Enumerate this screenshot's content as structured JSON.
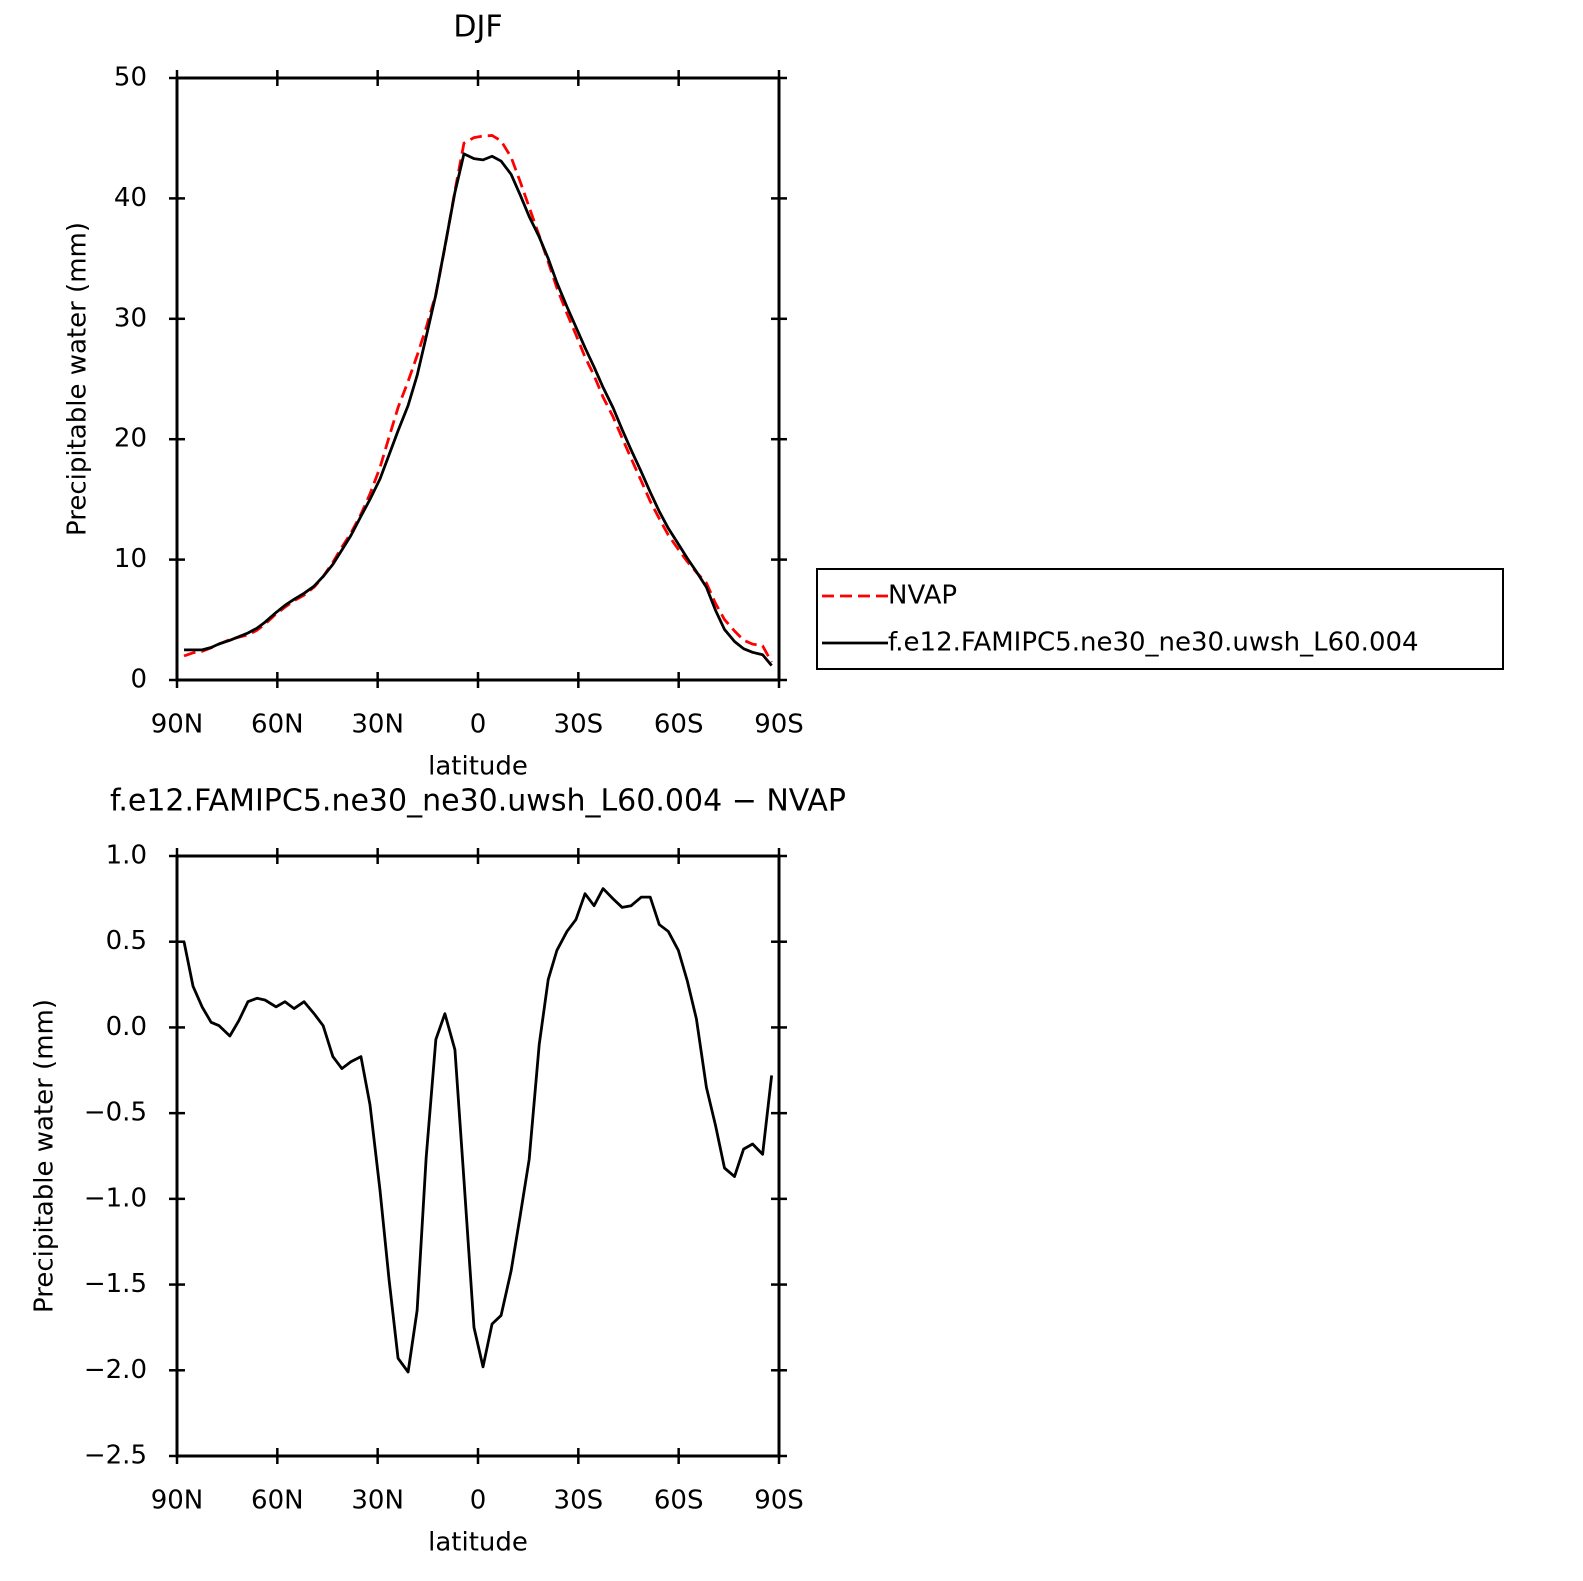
{
  "chart_data": [
    {
      "type": "line",
      "title": "DJF",
      "x_label": "latitude",
      "y_label": "Precipitable water (mm)",
      "x": [
        87.9,
        85.2,
        82.5,
        79.8,
        77.4,
        74.2,
        71.5,
        68.8,
        66.1,
        63.7,
        60.4,
        57.7,
        55.0,
        52.0,
        49.0,
        46.3,
        43.4,
        40.7,
        38.0,
        35.0,
        32.3,
        29.3,
        26.6,
        23.9,
        20.9,
        18.2,
        15.5,
        12.6,
        9.9,
        6.9,
        4.2,
        1.2,
        -1.5,
        -4.2,
        -6.9,
        -9.9,
        -12.6,
        -15.3,
        -18.3,
        -21.0,
        -23.6,
        -26.6,
        -29.3,
        -32.0,
        -34.7,
        -37.4,
        -40.4,
        -43.1,
        -45.8,
        -48.8,
        -51.5,
        -54.2,
        -56.9,
        -59.9,
        -62.6,
        -65.3,
        -68.3,
        -71.0,
        -73.7,
        -76.7,
        -79.4,
        -82.1,
        -85.1,
        -87.8
      ],
      "series": [
        {
          "name": "NVAP",
          "color": "#ff0000",
          "line_style": "dashed",
          "values": [
            2.0,
            2.26,
            2.38,
            2.67,
            2.99,
            3.35,
            3.56,
            3.75,
            4.13,
            4.64,
            5.48,
            6.05,
            6.59,
            7.05,
            7.72,
            8.59,
            9.77,
            11.04,
            12.2,
            13.77,
            15.45,
            17.65,
            20.17,
            22.63,
            24.81,
            26.95,
            29.26,
            32.07,
            35.92,
            40.63,
            44.59,
            45.05,
            45.18,
            45.23,
            44.78,
            43.42,
            41.4,
            39.27,
            36.9,
            34.72,
            32.55,
            30.44,
            28.67,
            26.82,
            25.29,
            23.49,
            21.85,
            20.1,
            18.39,
            16.54,
            14.84,
            13.4,
            12.04,
            10.85,
            9.83,
            8.95,
            8.05,
            6.37,
            5.02,
            4.07,
            3.31,
            2.98,
            2.84,
            1.48
          ]
        },
        {
          "name": "f.e12.FAMIPC5.ne30_ne30.uwsh_L60.004",
          "color": "#000000",
          "line_style": "solid",
          "values": [
            2.5,
            2.5,
            2.5,
            2.7,
            3.0,
            3.3,
            3.6,
            3.9,
            4.3,
            4.8,
            5.6,
            6.2,
            6.7,
            7.2,
            7.8,
            8.6,
            9.6,
            10.8,
            12.0,
            13.6,
            15.0,
            16.7,
            18.7,
            20.7,
            22.8,
            25.3,
            28.5,
            32.0,
            36.0,
            40.5,
            43.7,
            43.3,
            43.2,
            43.5,
            43.1,
            42.0,
            40.3,
            38.5,
            36.8,
            35.0,
            33.0,
            31.0,
            29.3,
            27.6,
            26.0,
            24.3,
            22.6,
            20.8,
            19.1,
            17.3,
            15.6,
            14.0,
            12.6,
            11.3,
            10.1,
            9.0,
            7.7,
            5.8,
            4.2,
            3.2,
            2.6,
            2.3,
            2.1,
            1.2
          ]
        }
      ],
      "xlim": [
        90,
        -90
      ],
      "xticks": [
        {
          "value": 90,
          "label": "90N"
        },
        {
          "value": 60,
          "label": "60N"
        },
        {
          "value": 30,
          "label": "30N"
        },
        0,
        {
          "value": -30,
          "label": "30S"
        },
        {
          "value": -60,
          "label": "60S"
        },
        {
          "value": -90,
          "label": "90S"
        }
      ],
      "ylim": [
        0,
        50
      ],
      "yticks": [
        0,
        10,
        20,
        30,
        40,
        50
      ],
      "legend": "right"
    },
    {
      "type": "line",
      "title": "f.e12.FAMIPC5.ne30_ne30.uwsh_L60.004 − NVAP",
      "x_label": "latitude",
      "y_label": "Precipitable water (mm)",
      "x": [
        87.9,
        85.2,
        82.5,
        79.8,
        77.4,
        74.2,
        71.5,
        68.8,
        66.1,
        63.7,
        60.4,
        57.7,
        55.0,
        52.0,
        49.0,
        46.3,
        43.4,
        40.7,
        38.0,
        35.0,
        32.3,
        29.3,
        26.6,
        23.9,
        20.9,
        18.2,
        15.5,
        12.6,
        9.9,
        6.9,
        4.2,
        1.2,
        -1.5,
        -4.2,
        -6.9,
        -9.9,
        -12.6,
        -15.3,
        -18.3,
        -21.0,
        -23.6,
        -26.6,
        -29.3,
        -32.0,
        -34.7,
        -37.4,
        -40.4,
        -43.1,
        -45.8,
        -48.8,
        -51.5,
        -54.2,
        -56.9,
        -59.9,
        -62.6,
        -65.3,
        -68.3,
        -71.0,
        -73.7,
        -76.7,
        -79.4,
        -82.1,
        -85.1,
        -87.8
      ],
      "values": [
        0.5,
        0.24,
        0.12,
        0.03,
        0.01,
        -0.05,
        0.04,
        0.15,
        0.17,
        0.16,
        0.12,
        0.15,
        0.11,
        0.15,
        0.08,
        0.01,
        -0.17,
        -0.24,
        -0.2,
        -0.17,
        -0.45,
        -0.95,
        -1.47,
        -1.93,
        -2.01,
        -1.65,
        -0.76,
        -0.07,
        0.08,
        -0.13,
        -0.89,
        -1.75,
        -1.98,
        -1.73,
        -1.68,
        -1.42,
        -1.1,
        -0.77,
        -0.1,
        0.28,
        0.45,
        0.56,
        0.63,
        0.78,
        0.71,
        0.81,
        0.75,
        0.7,
        0.71,
        0.76,
        0.76,
        0.6,
        0.56,
        0.45,
        0.27,
        0.05,
        -0.35,
        -0.57,
        -0.82,
        -0.87,
        -0.71,
        -0.68,
        -0.74,
        -0.28
      ],
      "color": "#000000",
      "xlim": [
        90,
        -90
      ],
      "xticks": [
        {
          "value": 90,
          "label": "90N"
        },
        {
          "value": 60,
          "label": "60N"
        },
        {
          "value": 30,
          "label": "30N"
        },
        0,
        {
          "value": -30,
          "label": "30S"
        },
        {
          "value": -60,
          "label": "60S"
        },
        {
          "value": -90,
          "label": "90S"
        }
      ],
      "ylim": [
        -2.5,
        1
      ],
      "yticks": [
        {
          "value": -2.5,
          "label": "−2.5"
        },
        {
          "value": -2,
          "label": "−2.0"
        },
        {
          "value": -1.5,
          "label": "−1.5"
        },
        {
          "value": -1,
          "label": "−1.0"
        },
        {
          "value": -0.5,
          "label": "−0.5"
        },
        {
          "value": 0,
          "label": "0.0"
        },
        0.5,
        {
          "value": 1,
          "label": "1.0"
        }
      ]
    }
  ]
}
